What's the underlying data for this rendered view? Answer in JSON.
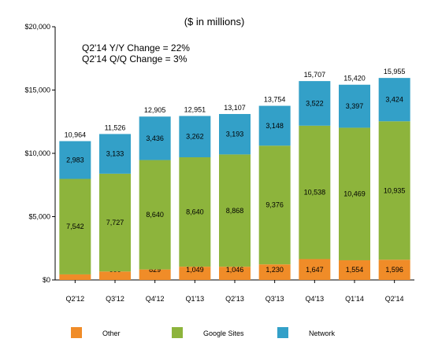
{
  "chart_data": {
    "type": "bar",
    "stacked": true,
    "title": "($ in millions)",
    "annotations": [
      "Q2'14 Y/Y Change = 22%",
      "Q2'14 Q/Q Change = 3%"
    ],
    "categories": [
      "Q2'12",
      "Q3'12",
      "Q4'12",
      "Q1'13",
      "Q2'13",
      "Q3'13",
      "Q4'13",
      "Q1'14",
      "Q2'14"
    ],
    "series": [
      {
        "name": "Other",
        "color": "#f08c28",
        "values": [
          439,
          666,
          829,
          1049,
          1046,
          1230,
          1647,
          1554,
          1596
        ]
      },
      {
        "name": "Google Sites",
        "color": "#8db43c",
        "values": [
          7542,
          7727,
          8640,
          8640,
          8868,
          9376,
          10538,
          10469,
          10935
        ]
      },
      {
        "name": "Network",
        "color": "#33a0c8",
        "values": [
          2983,
          3133,
          3436,
          3262,
          3193,
          3148,
          3522,
          3397,
          3424
        ]
      }
    ],
    "totals": [
      10964,
      11526,
      12905,
      12951,
      13107,
      13754,
      15707,
      15420,
      15955
    ],
    "ylim": [
      0,
      20000
    ],
    "yticks": [
      0,
      5000,
      10000,
      15000,
      20000
    ],
    "ytick_labels": [
      "$0",
      "$5,000",
      "$10,000",
      "$15,000",
      "$20,000"
    ],
    "grid": false,
    "legend_position": "bottom"
  }
}
